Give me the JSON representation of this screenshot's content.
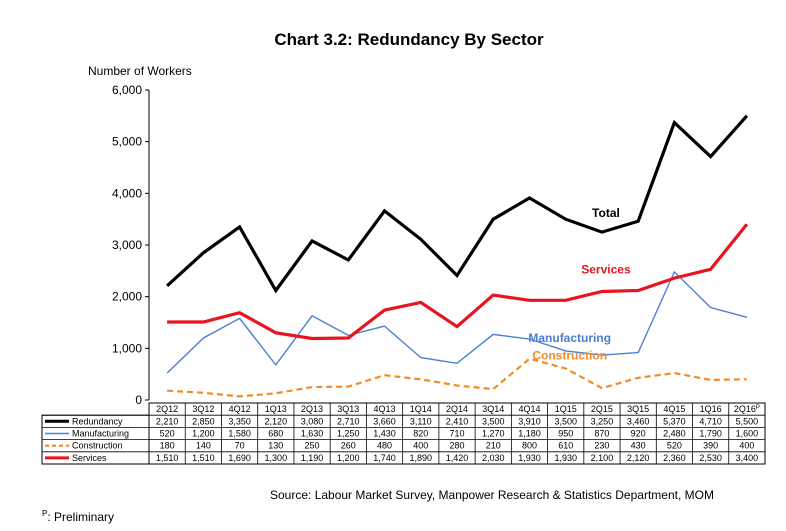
{
  "chart_data": {
    "type": "line",
    "title": "Chart 3.2: Redundancy By Sector",
    "ylabel": "Number of Workers",
    "xlabel": "",
    "ylim": [
      0,
      6000
    ],
    "yticks": [
      "0",
      "1,000",
      "2,000",
      "3,000",
      "4,000",
      "5,000",
      "6,000"
    ],
    "grid": false,
    "legend": "data table below plot",
    "categories": [
      "2Q12",
      "3Q12",
      "4Q12",
      "1Q13",
      "2Q13",
      "3Q13",
      "4Q13",
      "1Q14",
      "2Q14",
      "3Q14",
      "4Q14",
      "1Q15",
      "2Q15",
      "3Q15",
      "4Q15",
      "1Q16",
      "2Q16"
    ],
    "last_category_marker": "P",
    "series": [
      {
        "name": "Redundancy",
        "annotation": "Total",
        "color": "#000000",
        "style": "solid-thick",
        "values": [
          2210,
          2850,
          3350,
          2120,
          3080,
          2710,
          3660,
          3110,
          2410,
          3500,
          3910,
          3500,
          3250,
          3460,
          5370,
          4710,
          5500
        ],
        "labels": [
          "2,210",
          "2,850",
          "3,350",
          "2,120",
          "3,080",
          "2,710",
          "3,660",
          "3,110",
          "2,410",
          "3,500",
          "3,910",
          "3,500",
          "3,250",
          "3,460",
          "5,370",
          "4,710",
          "5,500"
        ]
      },
      {
        "name": "Manufacturing",
        "annotation": "Manufacturing",
        "color": "#4a7fd4",
        "style": "solid-thin",
        "values": [
          520,
          1200,
          1580,
          680,
          1630,
          1250,
          1430,
          820,
          710,
          1270,
          1180,
          950,
          870,
          920,
          2480,
          1790,
          1600
        ],
        "labels": [
          "520",
          "1,200",
          "1,580",
          "680",
          "1,630",
          "1,250",
          "1,430",
          "820",
          "710",
          "1,270",
          "1,180",
          "950",
          "870",
          "920",
          "2,480",
          "1,790",
          "1,600"
        ]
      },
      {
        "name": "Construction",
        "annotation": "Construction",
        "color": "#f08c28",
        "style": "dashed",
        "values": [
          180,
          140,
          70,
          130,
          250,
          260,
          480,
          400,
          280,
          210,
          800,
          610,
          230,
          430,
          520,
          390,
          400
        ],
        "labels": [
          "180",
          "140",
          "70",
          "130",
          "250",
          "260",
          "480",
          "400",
          "280",
          "210",
          "800",
          "610",
          "230",
          "430",
          "520",
          "390",
          "400"
        ]
      },
      {
        "name": "Services",
        "annotation": "Services",
        "color": "#e8141e",
        "style": "solid-thick",
        "values": [
          1510,
          1510,
          1690,
          1300,
          1190,
          1200,
          1740,
          1890,
          1420,
          2030,
          1930,
          1930,
          2100,
          2120,
          2360,
          2530,
          3400
        ],
        "labels": [
          "1,510",
          "1,510",
          "1,690",
          "1,300",
          "1,190",
          "1,200",
          "1,740",
          "1,890",
          "1,420",
          "2,030",
          "1,930",
          "1,930",
          "2,100",
          "2,120",
          "2,360",
          "2,530",
          "3,400"
        ]
      }
    ]
  },
  "source": "Source: Labour Market Survey, Manpower Research & Statistics Department, MOM",
  "footnote_mark": "P",
  "footnote_text": ": Preliminary"
}
